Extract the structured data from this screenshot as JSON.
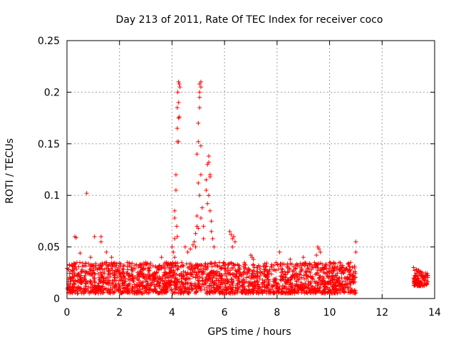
{
  "chart_data": {
    "type": "scatter",
    "title": "Day 213 of 2011, Rate Of TEC Index for receiver coco",
    "xlabel": "GPS time / hours",
    "ylabel": "ROTI / TECUs",
    "xlim": [
      0,
      14
    ],
    "ylim": [
      0,
      0.25
    ],
    "xticks": [
      0,
      2,
      4,
      6,
      8,
      10,
      12,
      14
    ],
    "yticks": [
      0,
      0.05,
      0.1,
      0.15,
      0.2,
      0.25
    ],
    "xtick_labels": [
      "0",
      "2",
      "4",
      "6",
      "8",
      "10",
      "12",
      "14"
    ],
    "ytick_labels": [
      "0",
      "0.05",
      "0.1",
      "0.15",
      "0.2",
      "0.25"
    ],
    "grid": true,
    "marker": "+",
    "series_color": "#ff0000",
    "background_segments": [
      {
        "x_start": 0.0,
        "x_end": 11.0,
        "y_min": 0.005,
        "y_max": 0.035
      },
      {
        "x_start": 13.2,
        "x_end": 13.75,
        "y_min": 0.012,
        "y_max": 0.028
      }
    ],
    "points": [
      [
        0.3,
        0.06
      ],
      [
        0.35,
        0.059
      ],
      [
        0.75,
        0.102
      ],
      [
        1.05,
        0.06
      ],
      [
        1.3,
        0.06
      ],
      [
        1.3,
        0.055
      ],
      [
        0.5,
        0.044
      ],
      [
        0.9,
        0.04
      ],
      [
        1.5,
        0.045
      ],
      [
        1.7,
        0.04
      ],
      [
        2.3,
        0.035
      ],
      [
        3.0,
        0.035
      ],
      [
        3.6,
        0.04
      ],
      [
        4.0,
        0.05
      ],
      [
        4.05,
        0.045
      ],
      [
        4.1,
        0.04
      ],
      [
        4.1,
        0.085
      ],
      [
        4.1,
        0.078
      ],
      [
        4.15,
        0.105
      ],
      [
        4.15,
        0.12
      ],
      [
        4.2,
        0.152
      ],
      [
        4.25,
        0.152
      ],
      [
        4.2,
        0.165
      ],
      [
        4.25,
        0.175
      ],
      [
        4.28,
        0.176
      ],
      [
        4.2,
        0.185
      ],
      [
        4.25,
        0.19
      ],
      [
        4.22,
        0.2
      ],
      [
        4.25,
        0.21
      ],
      [
        4.28,
        0.208
      ],
      [
        4.3,
        0.205
      ],
      [
        4.18,
        0.07
      ],
      [
        4.2,
        0.06
      ],
      [
        4.1,
        0.058
      ],
      [
        4.5,
        0.05
      ],
      [
        4.6,
        0.045
      ],
      [
        4.7,
        0.048
      ],
      [
        4.8,
        0.052
      ],
      [
        4.85,
        0.055
      ],
      [
        4.9,
        0.05
      ],
      [
        4.9,
        0.063
      ],
      [
        4.95,
        0.07
      ],
      [
        4.95,
        0.08
      ],
      [
        5.0,
        0.068
      ],
      [
        4.95,
        0.14
      ],
      [
        5.0,
        0.152
      ],
      [
        5.0,
        0.17
      ],
      [
        5.05,
        0.185
      ],
      [
        5.05,
        0.195
      ],
      [
        5.05,
        0.2
      ],
      [
        5.1,
        0.205
      ],
      [
        5.05,
        0.208
      ],
      [
        5.1,
        0.21
      ],
      [
        5.05,
        0.1
      ],
      [
        5.0,
        0.112
      ],
      [
        5.1,
        0.12
      ],
      [
        5.1,
        0.148
      ],
      [
        5.15,
        0.088
      ],
      [
        5.1,
        0.078
      ],
      [
        5.2,
        0.07
      ],
      [
        5.2,
        0.058
      ],
      [
        5.3,
        0.115
      ],
      [
        5.3,
        0.105
      ],
      [
        5.35,
        0.13
      ],
      [
        5.4,
        0.138
      ],
      [
        5.4,
        0.132
      ],
      [
        5.45,
        0.12
      ],
      [
        5.45,
        0.118
      ],
      [
        5.4,
        0.1
      ],
      [
        5.35,
        0.092
      ],
      [
        5.45,
        0.085
      ],
      [
        5.5,
        0.075
      ],
      [
        5.5,
        0.065
      ],
      [
        5.55,
        0.058
      ],
      [
        5.6,
        0.05
      ],
      [
        6.2,
        0.065
      ],
      [
        6.25,
        0.062
      ],
      [
        6.3,
        0.058
      ],
      [
        6.35,
        0.06
      ],
      [
        6.4,
        0.055
      ],
      [
        6.3,
        0.05
      ],
      [
        7.0,
        0.042
      ],
      [
        7.05,
        0.04
      ],
      [
        7.1,
        0.038
      ],
      [
        8.1,
        0.045
      ],
      [
        8.5,
        0.038
      ],
      [
        9.0,
        0.04
      ],
      [
        9.5,
        0.042
      ],
      [
        9.55,
        0.05
      ],
      [
        9.6,
        0.048
      ],
      [
        9.65,
        0.045
      ],
      [
        10.0,
        0.035
      ],
      [
        10.5,
        0.03
      ],
      [
        10.8,
        0.035
      ],
      [
        11.0,
        0.055
      ],
      [
        11.0,
        0.045
      ],
      [
        13.2,
        0.03
      ],
      [
        13.3,
        0.028
      ],
      [
        13.5,
        0.025
      ],
      [
        13.7,
        0.022
      ]
    ]
  }
}
